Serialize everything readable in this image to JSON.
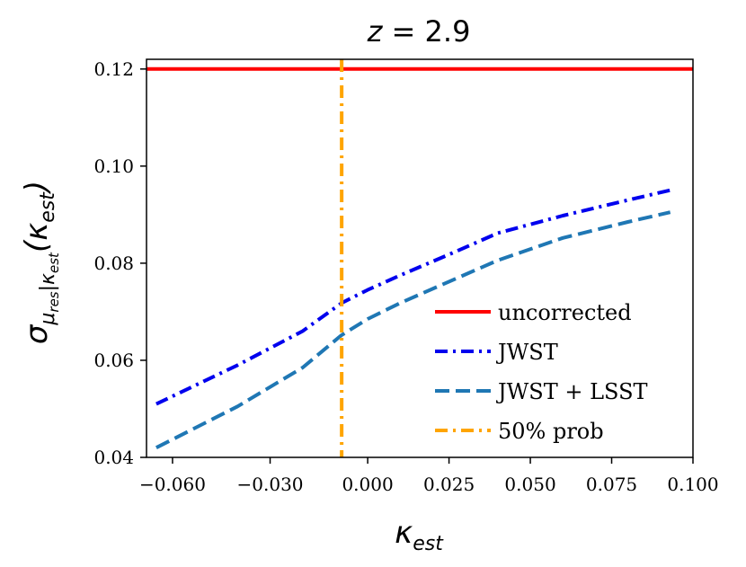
{
  "chart_data": {
    "type": "line",
    "title": "z = 2.9",
    "xlabel": "κ_est",
    "ylabel": "σ_{μres|κest}(κest)",
    "xlim": [
      -0.068,
      0.1
    ],
    "ylim": [
      0.04,
      0.122
    ],
    "x_ticks": [
      -0.06,
      -0.03,
      0.0,
      0.025,
      0.05,
      0.075,
      0.1
    ],
    "x_tick_labels": [
      "−0.060",
      "−0.030",
      "0.000",
      "0.025",
      "0.050",
      "0.075",
      "0.100"
    ],
    "y_ticks": [
      0.04,
      0.06,
      0.08,
      0.1,
      0.12
    ],
    "y_tick_labels": [
      "0.04",
      "0.06",
      "0.08",
      "0.10",
      "0.12"
    ],
    "legend_position": "lower-right",
    "series": [
      {
        "name": "uncorrected",
        "color": "#ff0000",
        "style": "solid",
        "kind": "hline",
        "value": 0.12
      },
      {
        "name": "JWST",
        "color": "#0000ee",
        "style": "dashdot",
        "x": [
          -0.065,
          -0.04,
          -0.02,
          -0.008,
          0.0,
          0.01,
          0.025,
          0.04,
          0.06,
          0.08,
          0.094
        ],
        "y": [
          0.051,
          0.059,
          0.066,
          0.0718,
          0.0745,
          0.0775,
          0.0818,
          0.0862,
          0.0898,
          0.093,
          0.0952
        ]
      },
      {
        "name": "JWST + LSST",
        "color": "#1f77b4",
        "style": "dashed",
        "x": [
          -0.065,
          -0.04,
          -0.02,
          -0.008,
          0.0,
          0.01,
          0.025,
          0.04,
          0.06,
          0.08,
          0.093
        ],
        "y": [
          0.042,
          0.0505,
          0.0585,
          0.0652,
          0.0685,
          0.0718,
          0.0762,
          0.0806,
          0.0852,
          0.0885,
          0.0905
        ]
      },
      {
        "name": "50% prob",
        "color": "#ffa500",
        "style": "dashdot",
        "kind": "vline",
        "value": -0.008
      }
    ]
  }
}
